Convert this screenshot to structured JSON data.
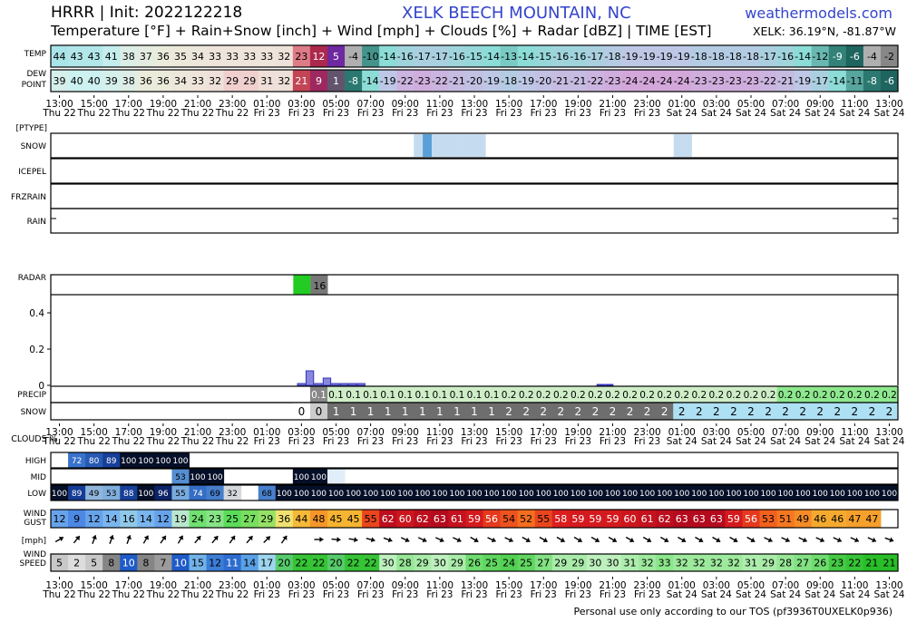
{
  "header": {
    "model_init": "HRRR | Init: 2022122218",
    "station": "XELK BEECH MOUNTAIN, NC",
    "site": "weathermodels.com",
    "variables": "Temperature [°F] + Rain+Snow [inch] + Wind [mph] + Clouds [%] + Radar [dBZ] | TIME [EST]",
    "coords": "XELK: 36.19°N, -81.87°W"
  },
  "footer": "Personal use only according to our TOS (pf3936T0UXELK0p936)",
  "chart_data": {
    "type": "table",
    "time_ticks": [
      {
        "time": "13:00",
        "day": "Thu 22"
      },
      {
        "time": "15:00",
        "day": "Thu 22"
      },
      {
        "time": "17:00",
        "day": "Thu 22"
      },
      {
        "time": "19:00",
        "day": "Thu 22"
      },
      {
        "time": "21:00",
        "day": "Thu 22"
      },
      {
        "time": "23:00",
        "day": "Thu 22"
      },
      {
        "time": "01:00",
        "day": "Fri 23"
      },
      {
        "time": "03:00",
        "day": "Fri 23"
      },
      {
        "time": "05:00",
        "day": "Fri 23"
      },
      {
        "time": "07:00",
        "day": "Fri 23"
      },
      {
        "time": "09:00",
        "day": "Fri 23"
      },
      {
        "time": "11:00",
        "day": "Fri 23"
      },
      {
        "time": "13:00",
        "day": "Fri 23"
      },
      {
        "time": "15:00",
        "day": "Fri 23"
      },
      {
        "time": "17:00",
        "day": "Fri 23"
      },
      {
        "time": "19:00",
        "day": "Fri 23"
      },
      {
        "time": "21:00",
        "day": "Fri 23"
      },
      {
        "time": "23:00",
        "day": "Fri 23"
      },
      {
        "time": "01:00",
        "day": "Sat 24"
      },
      {
        "time": "03:00",
        "day": "Sat 24"
      },
      {
        "time": "05:00",
        "day": "Sat 24"
      },
      {
        "time": "07:00",
        "day": "Sat 24"
      },
      {
        "time": "09:00",
        "day": "Sat 24"
      },
      {
        "time": "11:00",
        "day": "Sat 24"
      },
      {
        "time": "13:00",
        "day": "Sat 24"
      }
    ],
    "row_labels": {
      "temp": "TEMP",
      "dew": "DEW POINT",
      "ptype": "[PTYPE]",
      "snow_type": "SNOW",
      "icepel": "ICEPEL",
      "frzrain": "FRZRAIN",
      "rain": "RAIN",
      "radar": "RADAR",
      "precip": "PRECIP",
      "snow": "SNOW",
      "clouds": "CLOUDS %",
      "high": "HIGH",
      "mid": "MID",
      "low": "LOW",
      "gust": "WIND GUST",
      "mph": "[mph]",
      "speed": "WIND SPEED"
    },
    "temperature_f": [
      44,
      43,
      43,
      41,
      38,
      37,
      36,
      35,
      34,
      33,
      33,
      33,
      33,
      32,
      23,
      12,
      5,
      -4,
      -10,
      -14,
      -16,
      -17,
      -17,
      -16,
      -15,
      -14,
      -13,
      -14,
      -15,
      -16,
      -16,
      -17,
      -18,
      -19,
      -19,
      -19,
      -19,
      -18,
      -18,
      -18,
      -18,
      -17,
      -16,
      -14,
      -12,
      -9,
      -6,
      -4,
      -2
    ],
    "dewpoint_f": [
      39,
      40,
      40,
      39,
      38,
      36,
      36,
      34,
      33,
      32,
      29,
      29,
      31,
      32,
      21,
      9,
      1,
      -8,
      -14,
      -19,
      -22,
      -23,
      -22,
      -21,
      -20,
      -19,
      -18,
      -19,
      -20,
      -21,
      -21,
      -22,
      -23,
      -24,
      -24,
      -24,
      -24,
      -23,
      -23,
      -23,
      -23,
      -22,
      -21,
      -19,
      -17,
      -14,
      -11,
      -8,
      -6
    ],
    "ptype_snow_intensity": [
      0,
      0,
      0,
      0,
      0,
      0,
      0,
      0,
      0,
      0,
      0,
      0,
      0,
      0,
      0,
      1,
      3,
      1,
      1,
      1,
      1,
      1,
      1,
      0,
      0,
      0,
      0,
      0,
      0,
      0,
      0,
      0,
      0,
      0,
      0,
      0,
      0,
      0,
      0,
      0,
      0,
      0,
      0,
      0,
      1,
      1,
      0,
      0,
      0,
      0,
      0,
      0,
      0,
      0,
      0,
      0,
      0,
      0,
      0,
      0,
      0,
      0,
      0,
      0,
      0,
      0,
      0,
      0,
      0
    ],
    "radar_dbz": [
      {
        "index": 14,
        "value": "",
        "color": "#22cc22"
      },
      {
        "index": 15,
        "value": "16",
        "color": "#777777"
      }
    ],
    "precip_hourly_in": [
      0,
      0,
      0,
      0,
      0,
      0,
      0,
      0,
      0,
      0,
      0,
      0,
      0,
      0,
      0.01,
      0.08,
      0.01,
      0.04,
      0.01,
      0.01,
      0.01,
      0.01,
      0,
      0,
      0,
      0,
      0,
      0,
      0,
      0,
      0,
      0,
      0,
      0,
      0,
      0,
      0,
      0,
      0,
      0,
      0,
      0,
      0,
      0,
      0,
      0,
      0,
      0,
      0,
      0.005,
      0.005,
      0,
      0,
      0,
      0,
      0,
      0,
      0,
      0,
      0,
      0,
      0,
      0,
      0,
      0,
      0,
      0,
      0,
      0
    ],
    "precip_ylim": [
      0,
      0.5
    ],
    "precip_yticks": [
      "0",
      "0.2",
      "0.4"
    ],
    "precip_accum_in": [
      "",
      "",
      "",
      "",
      "",
      "",
      "",
      "",
      "",
      "",
      "",
      "",
      "",
      "",
      "",
      "0.1",
      "0.1",
      "0.1",
      "0.1",
      "0.1",
      "0.1",
      "0.1",
      "0.1",
      "0.1",
      "0.1",
      "0.1",
      "0.2",
      "0.2",
      "0.2",
      "0.2",
      "0.2",
      "0.2",
      "0.2",
      "0.2",
      "0.2",
      "0.2",
      "0.2",
      "0.2",
      "0.2",
      "0.2",
      "0.2",
      "0.2",
      "0.2",
      "0.2",
      "0.2",
      "0.2",
      "0.2",
      "0.2",
      "0.2"
    ],
    "snow_accum_in": [
      "",
      "",
      "",
      "",
      "",
      "",
      "",
      "",
      "",
      "",
      "",
      "",
      "",
      "",
      "0",
      "0",
      "1",
      "1",
      "1",
      "1",
      "1",
      "1",
      "1",
      "1",
      "1",
      "1",
      "2",
      "2",
      "2",
      "2",
      "2",
      "2",
      "2",
      "2",
      "2",
      "2",
      "2",
      "2",
      "2",
      "2",
      "2",
      "2",
      "2",
      "2",
      "2",
      "2",
      "2",
      "2",
      "2"
    ],
    "clouds_high": [
      null,
      72,
      80,
      89,
      100,
      100,
      100,
      100,
      null,
      null,
      null,
      null,
      null,
      null,
      null,
      null,
      null,
      null,
      null,
      null,
      null,
      null,
      null,
      null,
      null,
      null,
      null,
      null,
      null,
      null,
      null,
      null,
      null,
      null,
      null,
      null,
      null,
      null,
      null,
      null,
      null,
      null,
      null,
      null,
      null,
      null,
      null,
      null,
      null
    ],
    "clouds_mid": [
      null,
      null,
      null,
      null,
      null,
      null,
      null,
      53,
      100,
      100,
      null,
      null,
      null,
      null,
      100,
      100,
      5,
      null,
      null,
      null,
      null,
      null,
      null,
      null,
      null,
      null,
      null,
      null,
      null,
      null,
      null,
      null,
      null,
      null,
      null,
      null,
      null,
      null,
      null,
      null,
      null,
      null,
      null,
      null,
      null,
      null,
      null,
      null,
      null
    ],
    "clouds_low": [
      100,
      89,
      49,
      53,
      88,
      100,
      96,
      55,
      74,
      69,
      32,
      null,
      68,
      100,
      100,
      100,
      100,
      100,
      100,
      100,
      100,
      100,
      100,
      100,
      100,
      100,
      100,
      100,
      100,
      100,
      100,
      100,
      100,
      100,
      100,
      100,
      100,
      100,
      100,
      100,
      100,
      100,
      100,
      100,
      100,
      100,
      100,
      100,
      100
    ],
    "wind_gust_mph": [
      12,
      9,
      12,
      14,
      16,
      14,
      12,
      19,
      24,
      23,
      25,
      27,
      29,
      36,
      44,
      48,
      45,
      45,
      55,
      62,
      60,
      62,
      63,
      61,
      59,
      56,
      54,
      52,
      55,
      58,
      59,
      59,
      59,
      60,
      61,
      62,
      63,
      63,
      63,
      59,
      56,
      53,
      51,
      49,
      46,
      46,
      47,
      47,
      null
    ],
    "wind_dir_deg": [
      240,
      220,
      200,
      200,
      200,
      210,
      215,
      210,
      220,
      220,
      215,
      220,
      225,
      215,
      null,
      270,
      275,
      280,
      285,
      290,
      295,
      295,
      295,
      295,
      300,
      295,
      295,
      300,
      300,
      300,
      300,
      300,
      300,
      300,
      300,
      300,
      300,
      300,
      300,
      300,
      300,
      295,
      295,
      295,
      295,
      295,
      295,
      295,
      290
    ],
    "wind_speed_mph": [
      5,
      2,
      5,
      8,
      10,
      8,
      7,
      10,
      15,
      12,
      11,
      14,
      17,
      20,
      22,
      22,
      20,
      22,
      22,
      30,
      28,
      29,
      30,
      29,
      26,
      25,
      24,
      25,
      27,
      29,
      29,
      30,
      30,
      31,
      32,
      33,
      32,
      32,
      32,
      32,
      31,
      29,
      28,
      27,
      26,
      23,
      22,
      21,
      21
    ]
  },
  "colors": {
    "frame": "#000000",
    "radar_bar": "#3333bb",
    "radar_fill": "#8888dd"
  }
}
